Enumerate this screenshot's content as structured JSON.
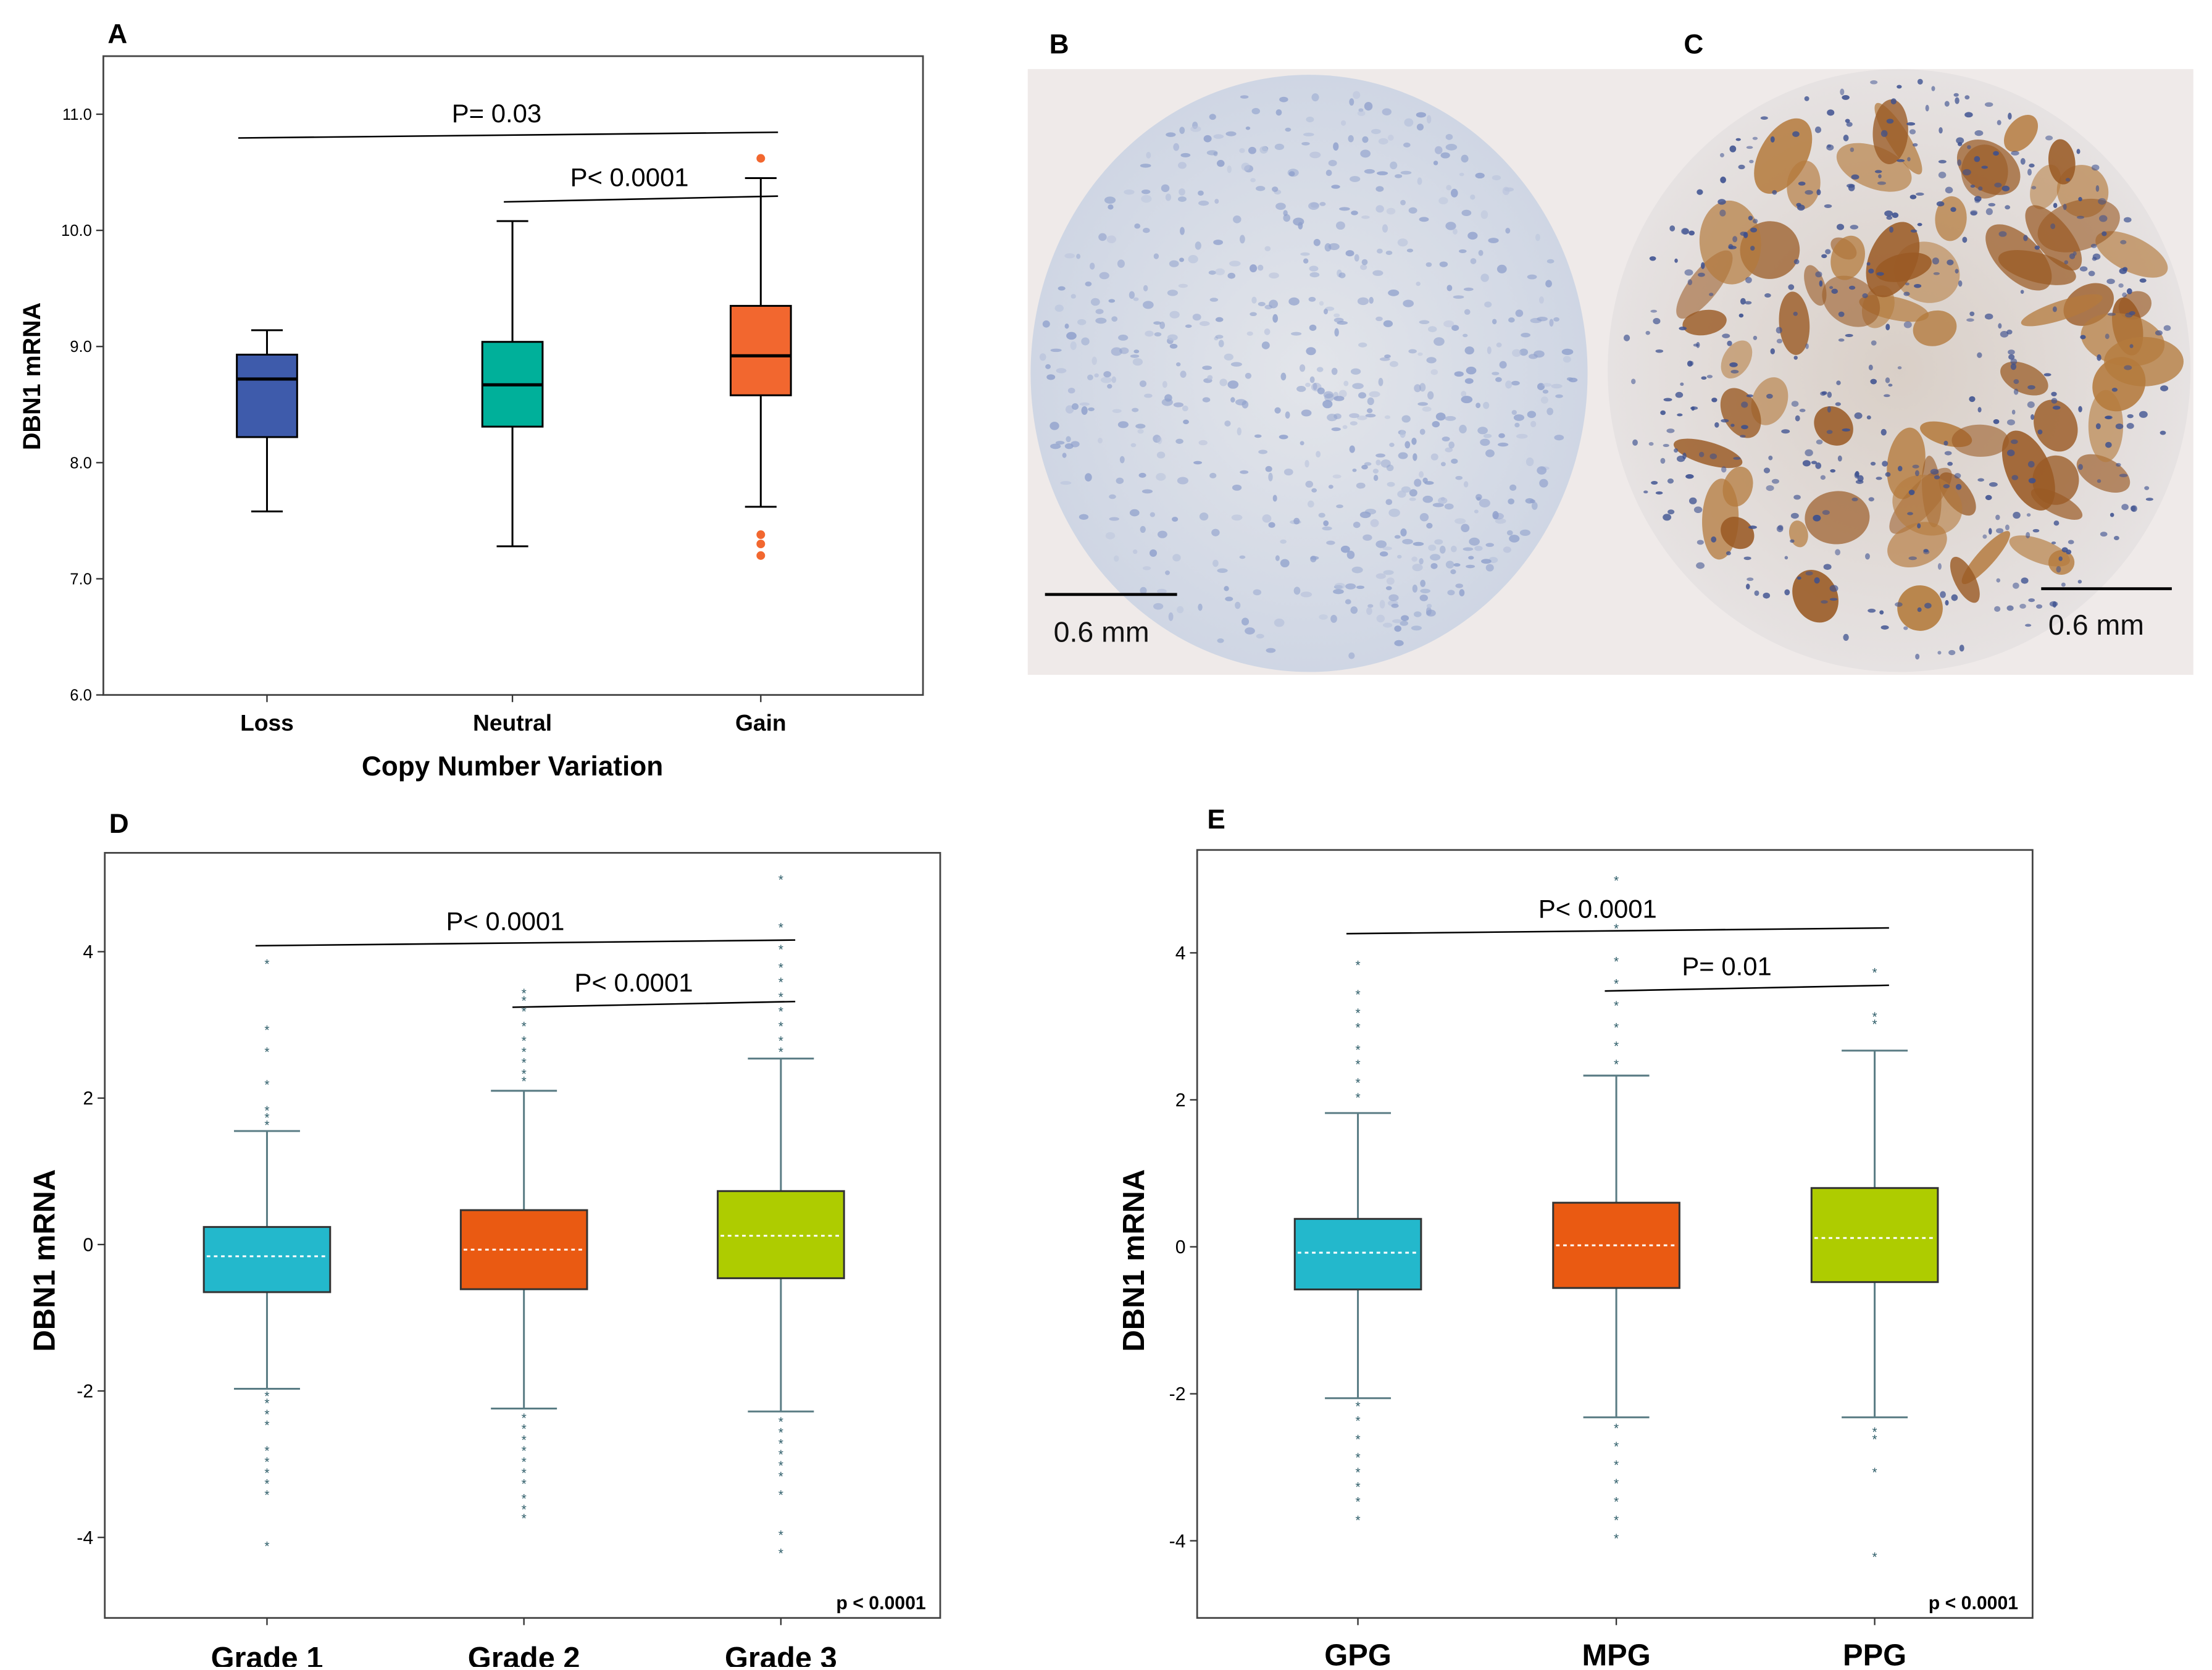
{
  "colors": {
    "loss": "#3e5bab",
    "neutral": "#00b09a",
    "gain": "#f2672f",
    "cyan": "#23b8cc",
    "orange": "#ea5a12",
    "lime": "#aecc00",
    "whisker_bd": "#5a7c84",
    "outlier_bd": "#2f5e6a",
    "outlier_a": "#f2672f"
  },
  "panels": {
    "A": {
      "letter": "A"
    },
    "B": {
      "letter": "B",
      "scale_bar": "0.6 mm"
    },
    "C": {
      "letter": "C",
      "scale_bar": "0.6 mm"
    },
    "D": {
      "letter": "D",
      "corner_note": "p < 0.0001"
    },
    "E": {
      "letter": "E",
      "corner_note": "p < 0.0001"
    }
  },
  "chart_data": [
    {
      "id": "A",
      "type": "box",
      "title": "",
      "xlabel": "Copy Number Variation",
      "ylabel": "DBN1 mRNA",
      "ylim": [
        6.0,
        11.5
      ],
      "yticks": [
        6.0,
        7.0,
        8.0,
        9.0,
        10.0,
        11.0
      ],
      "ytick_labels": [
        "6.0",
        "7.0",
        "8.0",
        "9.0",
        "10.0",
        "11.0"
      ],
      "categories": [
        "Loss",
        "Neutral",
        "Gain"
      ],
      "boxes": [
        {
          "name": "Loss",
          "whislo": 7.58,
          "q1": 8.22,
          "med": 8.72,
          "q3": 8.93,
          "whishi": 9.14,
          "outliers": []
        },
        {
          "name": "Neutral",
          "whislo": 7.28,
          "q1": 8.31,
          "med": 8.67,
          "q3": 9.04,
          "whishi": 10.08,
          "outliers": []
        },
        {
          "name": "Gain",
          "whislo": 7.62,
          "q1": 8.58,
          "med": 8.92,
          "q3": 9.35,
          "whishi": 10.45,
          "outliers": [
            10.62,
            7.38,
            7.3,
            7.2
          ]
        }
      ],
      "comparisons": [
        {
          "label": "P= 0.03",
          "from": 0,
          "to": 2,
          "y": 10.82
        },
        {
          "label": "P< 0.0001",
          "from": 1,
          "to": 2,
          "y": 10.27
        }
      ]
    },
    {
      "id": "D",
      "type": "box",
      "title": "",
      "xlabel": "",
      "ylabel": "DBN1 mRNA",
      "ylim": [
        -5.1,
        5.35
      ],
      "yticks": [
        -4,
        -2,
        0,
        2,
        4
      ],
      "ytick_labels": [
        "-4",
        "-2",
        "0",
        "2",
        "4"
      ],
      "categories": [
        "Grade 1",
        "Grade 2",
        "Grade 3"
      ],
      "boxes": [
        {
          "name": "Grade 1",
          "whislo": -1.97,
          "q1": -0.65,
          "med": -0.16,
          "q3": 0.24,
          "whishi": 1.55,
          "outliers": [
            3.85,
            2.95,
            2.65,
            2.2,
            1.85,
            1.75,
            1.65,
            -2.05,
            -2.15,
            -2.3,
            -2.45,
            -2.8,
            -2.95,
            -3.1,
            -3.25,
            -3.4,
            -4.1
          ]
        },
        {
          "name": "Grade 2",
          "whislo": -2.24,
          "q1": -0.61,
          "med": -0.07,
          "q3": 0.47,
          "whishi": 2.1,
          "outliers": [
            3.45,
            3.35,
            3.2,
            3.0,
            2.8,
            2.65,
            2.5,
            2.35,
            2.25,
            -2.35,
            -2.5,
            -2.65,
            -2.8,
            -2.95,
            -3.1,
            -3.25,
            -3.45,
            -3.6,
            -3.72
          ]
        },
        {
          "name": "Grade 3",
          "whislo": -2.28,
          "q1": -0.46,
          "med": 0.12,
          "q3": 0.73,
          "whishi": 2.54,
          "outliers": [
            5.0,
            4.35,
            4.05,
            3.8,
            3.6,
            3.4,
            3.2,
            3.0,
            2.8,
            2.65,
            -2.4,
            -2.55,
            -2.7,
            -2.85,
            -3.0,
            -3.15,
            -3.4,
            -3.95,
            -4.2
          ]
        }
      ],
      "comparisons": [
        {
          "label": "P< 0.0001",
          "from": 0,
          "to": 2,
          "y": 4.12
        },
        {
          "label": "P< 0.0001",
          "from": 1,
          "to": 2,
          "y": 3.28
        }
      ]
    },
    {
      "id": "E",
      "type": "box",
      "title": "",
      "xlabel": "",
      "ylabel": "DBN1 mRNA",
      "ylim": [
        -5.05,
        5.4
      ],
      "yticks": [
        -4,
        -2,
        0,
        2,
        4
      ],
      "ytick_labels": [
        "-4",
        "-2",
        "0",
        "2",
        "4"
      ],
      "categories": [
        "GPG",
        "MPG",
        "PPG"
      ],
      "boxes": [
        {
          "name": "GPG",
          "whislo": -2.06,
          "q1": -0.58,
          "med": -0.08,
          "q3": 0.38,
          "whishi": 1.82,
          "outliers": [
            3.85,
            3.45,
            3.2,
            3.0,
            2.7,
            2.5,
            2.25,
            2.05,
            -2.15,
            -2.35,
            -2.6,
            -2.85,
            -3.05,
            -3.25,
            -3.45,
            -3.7
          ]
        },
        {
          "name": "MPG",
          "whislo": -2.32,
          "q1": -0.56,
          "med": 0.02,
          "q3": 0.6,
          "whishi": 2.33,
          "outliers": [
            5.0,
            4.35,
            3.9,
            3.6,
            3.3,
            3.0,
            2.75,
            2.5,
            -2.45,
            -2.7,
            -2.95,
            -3.2,
            -3.45,
            -3.7,
            -3.95
          ]
        },
        {
          "name": "PPG",
          "whislo": -2.32,
          "q1": -0.48,
          "med": 0.12,
          "q3": 0.8,
          "whishi": 2.67,
          "outliers": [
            3.75,
            3.15,
            3.05,
            -2.5,
            -2.6,
            -3.05,
            -4.2
          ]
        }
      ],
      "comparisons": [
        {
          "label": "P< 0.0001",
          "from": 0,
          "to": 2,
          "y": 4.3
        },
        {
          "label": "P= 0.01",
          "from": 1,
          "to": 2,
          "y": 3.52
        }
      ]
    }
  ]
}
